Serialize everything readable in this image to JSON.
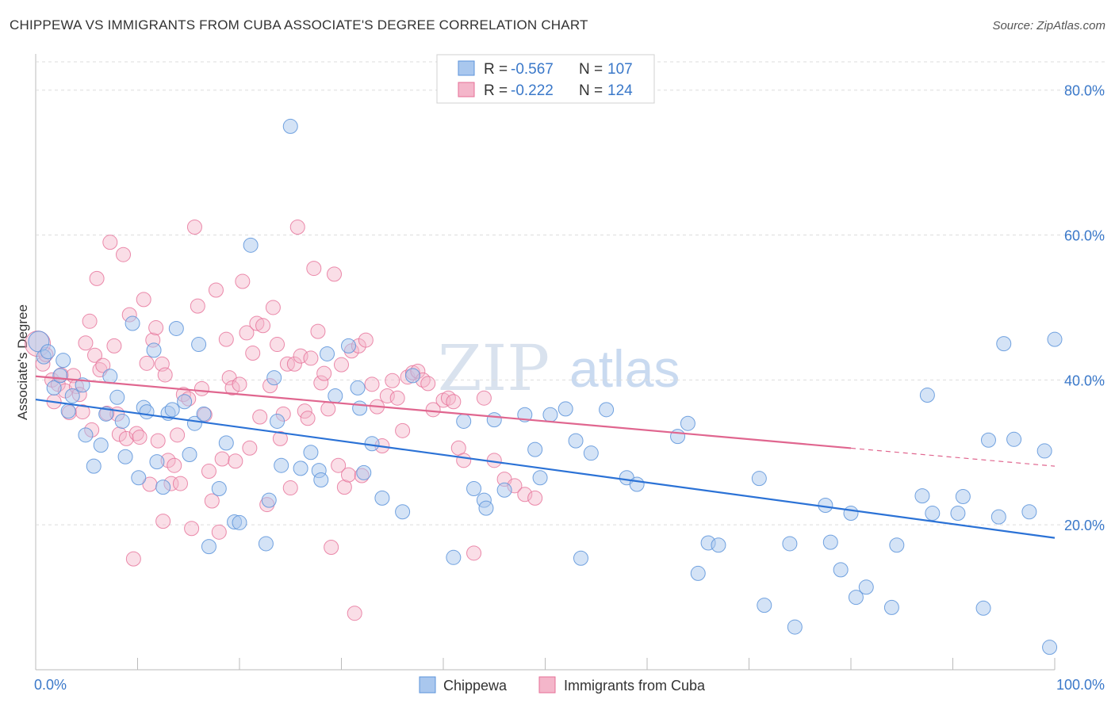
{
  "title": "CHIPPEWA VS IMMIGRANTS FROM CUBA ASSOCIATE'S DEGREE CORRELATION CHART",
  "source": "Source: ZipAtlas.com",
  "watermark": {
    "zip": "ZIP",
    "atlas": "atlas"
  },
  "colors": {
    "blue": "#5b93db",
    "blue_fill": "#a9c7ee",
    "pink": "#e66f97",
    "pink_fill": "#f4b6ca",
    "blue_line": "#2b72d6",
    "pink_line": "#e0668f"
  },
  "legend": {
    "r_label": "R =",
    "n_label": "N =",
    "rows": [
      {
        "r": "-0.567",
        "n": "107"
      },
      {
        "r": "-0.222",
        "n": "124"
      }
    ]
  },
  "chart_data": {
    "type": "scatter",
    "title": "CHIPPEWA VS IMMIGRANTS FROM CUBA ASSOCIATE'S DEGREE CORRELATION CHART",
    "xlabel": "",
    "ylabel": "Associate's Degree",
    "xlim": [
      0,
      100
    ],
    "ylim": [
      0,
      85
    ],
    "x_tick_labels": [
      "0.0%",
      "100.0%"
    ],
    "y_ticks": [
      20,
      40,
      60,
      80
    ],
    "y_tick_labels": [
      "20.0%",
      "40.0%",
      "60.0%",
      "80.0%"
    ],
    "grid": true,
    "legend_position": "top-center",
    "series": [
      {
        "name": "Chippewa",
        "color": "#5b93db",
        "trend": {
          "x": [
            0,
            100
          ],
          "y": [
            37.3,
            18.2
          ],
          "solid_until": 100
        },
        "points": [
          [
            0.3,
            45.3
          ],
          [
            0.8,
            43.2
          ],
          [
            1.2,
            43.9
          ],
          [
            1.8,
            38.9
          ],
          [
            2.4,
            40.6
          ],
          [
            2.7,
            42.7
          ],
          [
            3.2,
            35.7
          ],
          [
            3.6,
            37.8
          ],
          [
            4.6,
            39.3
          ],
          [
            4.9,
            32.4
          ],
          [
            5.7,
            28.1
          ],
          [
            6.4,
            31.0
          ],
          [
            6.9,
            35.3
          ],
          [
            7.3,
            40.5
          ],
          [
            8.0,
            37.6
          ],
          [
            8.5,
            34.3
          ],
          [
            8.8,
            29.4
          ],
          [
            9.5,
            47.8
          ],
          [
            10.1,
            26.5
          ],
          [
            10.6,
            36.2
          ],
          [
            10.9,
            35.6
          ],
          [
            11.6,
            44.1
          ],
          [
            11.9,
            28.7
          ],
          [
            12.5,
            25.2
          ],
          [
            13.0,
            35.4
          ],
          [
            13.4,
            35.9
          ],
          [
            13.8,
            47.1
          ],
          [
            14.6,
            37.0
          ],
          [
            15.1,
            29.7
          ],
          [
            15.6,
            34.0
          ],
          [
            16.0,
            44.9
          ],
          [
            16.5,
            35.3
          ],
          [
            17.0,
            17.0
          ],
          [
            18.0,
            25.0
          ],
          [
            18.7,
            31.3
          ],
          [
            19.5,
            20.4
          ],
          [
            20.0,
            20.3
          ],
          [
            21.1,
            58.6
          ],
          [
            22.6,
            17.4
          ],
          [
            22.9,
            23.4
          ],
          [
            23.4,
            40.3
          ],
          [
            23.7,
            34.3
          ],
          [
            24.1,
            28.2
          ],
          [
            25.0,
            75.0
          ],
          [
            26.0,
            27.8
          ],
          [
            27.0,
            30.0
          ],
          [
            27.8,
            27.5
          ],
          [
            28.0,
            26.2
          ],
          [
            28.6,
            43.6
          ],
          [
            29.4,
            37.8
          ],
          [
            30.7,
            44.7
          ],
          [
            31.6,
            38.9
          ],
          [
            31.8,
            36.1
          ],
          [
            32.2,
            27.2
          ],
          [
            33.0,
            31.2
          ],
          [
            34.0,
            23.7
          ],
          [
            36.0,
            21.8
          ],
          [
            37.0,
            40.6
          ],
          [
            41.0,
            15.5
          ],
          [
            42.0,
            34.3
          ],
          [
            43.0,
            25.0
          ],
          [
            44.0,
            23.4
          ],
          [
            44.2,
            22.3
          ],
          [
            45.0,
            34.5
          ],
          [
            46.0,
            24.8
          ],
          [
            48.0,
            35.2
          ],
          [
            49.0,
            30.4
          ],
          [
            49.5,
            26.5
          ],
          [
            50.5,
            35.2
          ],
          [
            52.0,
            36.0
          ],
          [
            53.0,
            31.6
          ],
          [
            53.5,
            15.4
          ],
          [
            54.5,
            29.9
          ],
          [
            56.0,
            35.9
          ],
          [
            58.0,
            26.5
          ],
          [
            59.0,
            25.6
          ],
          [
            63.0,
            32.2
          ],
          [
            64.0,
            34.0
          ],
          [
            65.0,
            13.3
          ],
          [
            66.0,
            17.5
          ],
          [
            67.0,
            17.2
          ],
          [
            71.0,
            26.4
          ],
          [
            71.5,
            8.9
          ],
          [
            74.0,
            17.4
          ],
          [
            74.5,
            5.9
          ],
          [
            77.5,
            22.7
          ],
          [
            78.0,
            17.6
          ],
          [
            79.0,
            13.8
          ],
          [
            80.0,
            21.6
          ],
          [
            80.5,
            10.0
          ],
          [
            81.5,
            11.4
          ],
          [
            84.0,
            8.6
          ],
          [
            84.5,
            17.2
          ],
          [
            87.0,
            24.0
          ],
          [
            87.5,
            37.9
          ],
          [
            88.0,
            21.6
          ],
          [
            90.5,
            21.6
          ],
          [
            91.0,
            23.9
          ],
          [
            93.0,
            8.5
          ],
          [
            93.5,
            31.7
          ],
          [
            94.5,
            21.1
          ],
          [
            96.0,
            31.8
          ],
          [
            97.5,
            21.8
          ],
          [
            99.0,
            30.2
          ],
          [
            99.5,
            3.1
          ],
          [
            100.0,
            45.6
          ],
          [
            95.0,
            45.0
          ]
        ]
      },
      {
        "name": "Immigrants from Cuba",
        "color": "#e66f97",
        "trend": {
          "x": [
            0,
            100
          ],
          "y": [
            40.5,
            28.1
          ],
          "solid_until": 80
        },
        "points": [
          [
            0.2,
            45.0
          ],
          [
            0.7,
            42.2
          ],
          [
            1.0,
            43.5
          ],
          [
            1.6,
            40.0
          ],
          [
            1.8,
            37.0
          ],
          [
            2.2,
            39.4
          ],
          [
            2.5,
            40.7
          ],
          [
            2.9,
            38.5
          ],
          [
            3.3,
            35.5
          ],
          [
            3.7,
            40.6
          ],
          [
            4.0,
            39.1
          ],
          [
            4.3,
            38.0
          ],
          [
            4.6,
            35.6
          ],
          [
            4.9,
            45.1
          ],
          [
            5.3,
            48.1
          ],
          [
            5.5,
            33.1
          ],
          [
            5.8,
            43.4
          ],
          [
            6.0,
            54.0
          ],
          [
            6.3,
            41.4
          ],
          [
            6.6,
            42.0
          ],
          [
            7.0,
            35.4
          ],
          [
            7.3,
            59.0
          ],
          [
            7.7,
            44.7
          ],
          [
            8.0,
            35.3
          ],
          [
            8.2,
            32.5
          ],
          [
            8.6,
            57.3
          ],
          [
            8.9,
            31.9
          ],
          [
            9.2,
            49.0
          ],
          [
            9.6,
            15.3
          ],
          [
            9.9,
            32.6
          ],
          [
            10.2,
            32.1
          ],
          [
            10.6,
            51.1
          ],
          [
            10.9,
            42.3
          ],
          [
            11.2,
            25.6
          ],
          [
            11.5,
            45.5
          ],
          [
            11.8,
            47.2
          ],
          [
            12.0,
            31.6
          ],
          [
            12.4,
            42.2
          ],
          [
            12.7,
            40.7
          ],
          [
            13.0,
            28.9
          ],
          [
            13.3,
            25.7
          ],
          [
            13.6,
            28.2
          ],
          [
            13.9,
            32.4
          ],
          [
            14.2,
            25.7
          ],
          [
            14.5,
            38.0
          ],
          [
            15.0,
            37.4
          ],
          [
            15.3,
            19.5
          ],
          [
            15.6,
            61.1
          ],
          [
            15.9,
            50.2
          ],
          [
            16.3,
            38.8
          ],
          [
            16.6,
            35.2
          ],
          [
            17.0,
            27.4
          ],
          [
            17.3,
            23.3
          ],
          [
            17.7,
            52.4
          ],
          [
            18.0,
            19.0
          ],
          [
            18.3,
            29.1
          ],
          [
            18.7,
            45.6
          ],
          [
            19.0,
            40.3
          ],
          [
            19.3,
            38.9
          ],
          [
            19.6,
            28.8
          ],
          [
            20.0,
            39.4
          ],
          [
            20.3,
            53.6
          ],
          [
            20.7,
            46.5
          ],
          [
            21.0,
            30.6
          ],
          [
            21.3,
            43.7
          ],
          [
            21.7,
            47.8
          ],
          [
            22.0,
            34.9
          ],
          [
            22.3,
            47.5
          ],
          [
            22.7,
            22.8
          ],
          [
            23.0,
            39.2
          ],
          [
            23.3,
            50.0
          ],
          [
            23.7,
            44.9
          ],
          [
            24.0,
            31.9
          ],
          [
            24.3,
            35.3
          ],
          [
            24.7,
            42.2
          ],
          [
            25.0,
            25.1
          ],
          [
            25.4,
            42.2
          ],
          [
            25.7,
            61.1
          ],
          [
            26.0,
            43.3
          ],
          [
            26.4,
            35.7
          ],
          [
            26.7,
            34.7
          ],
          [
            27.0,
            43.0
          ],
          [
            27.3,
            55.4
          ],
          [
            27.7,
            46.7
          ],
          [
            28.0,
            39.6
          ],
          [
            28.3,
            40.9
          ],
          [
            28.7,
            36.0
          ],
          [
            29.0,
            16.9
          ],
          [
            29.3,
            54.6
          ],
          [
            29.7,
            28.2
          ],
          [
            30.0,
            42.1
          ],
          [
            30.3,
            25.2
          ],
          [
            30.7,
            26.9
          ],
          [
            31.0,
            44.0
          ],
          [
            31.3,
            7.8
          ],
          [
            31.7,
            44.7
          ],
          [
            32.0,
            26.8
          ],
          [
            32.4,
            45.5
          ],
          [
            33.0,
            39.4
          ],
          [
            33.5,
            36.3
          ],
          [
            34.0,
            30.9
          ],
          [
            34.5,
            37.8
          ],
          [
            35.0,
            39.9
          ],
          [
            35.5,
            37.5
          ],
          [
            36.0,
            33.0
          ],
          [
            36.5,
            40.4
          ],
          [
            37.0,
            41.0
          ],
          [
            37.5,
            41.2
          ],
          [
            38.0,
            40.0
          ],
          [
            38.5,
            39.5
          ],
          [
            39.0,
            35.9
          ],
          [
            40.0,
            37.2
          ],
          [
            40.5,
            37.5
          ],
          [
            41.0,
            37.0
          ],
          [
            41.5,
            30.6
          ],
          [
            42.0,
            28.9
          ],
          [
            43.0,
            16.1
          ],
          [
            44.0,
            37.5
          ],
          [
            45.0,
            28.9
          ],
          [
            46.0,
            26.3
          ],
          [
            47.0,
            25.4
          ],
          [
            48.0,
            24.2
          ],
          [
            49.0,
            23.7
          ],
          [
            12.5,
            20.5
          ]
        ]
      }
    ]
  },
  "bottom_legend": [
    "Chippewa",
    "Immigrants from Cuba"
  ]
}
